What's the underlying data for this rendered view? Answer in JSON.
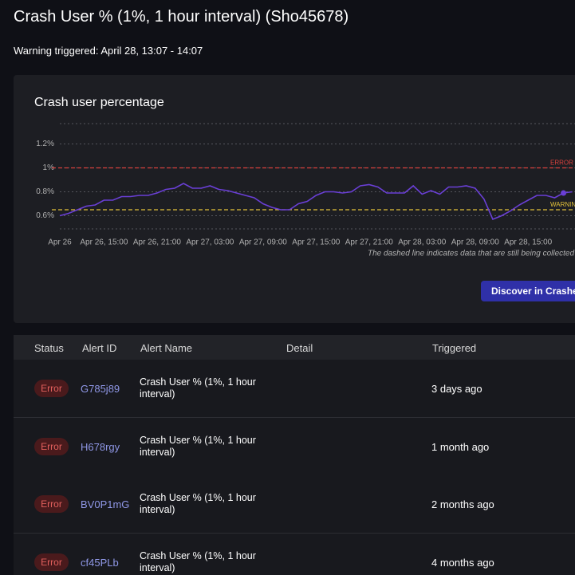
{
  "header": {
    "title": "Crash User % (1%, 1 hour interval) (Sho45678)",
    "subtitle": "Warning triggered: April 28, 13:07 - 14:07"
  },
  "chart_data": {
    "type": "line",
    "title": "Crash user percentage",
    "color": "#6a3fd6",
    "x": [
      10,
      11,
      12,
      13,
      14,
      15,
      16,
      17,
      18,
      19,
      20,
      21,
      22,
      23,
      24,
      25,
      26,
      27,
      28,
      29,
      30,
      31,
      32,
      33,
      34,
      35,
      36,
      37,
      38,
      39,
      40,
      41,
      42,
      43,
      44,
      45,
      46,
      47,
      48,
      49,
      50,
      51,
      52,
      53,
      54,
      55,
      56,
      57,
      58,
      59,
      60,
      61,
      62,
      63,
      64,
      65,
      66,
      67,
      68
    ],
    "values": [
      0.6,
      0.62,
      0.65,
      0.68,
      0.69,
      0.73,
      0.73,
      0.76,
      0.76,
      0.77,
      0.77,
      0.79,
      0.82,
      0.83,
      0.87,
      0.83,
      0.83,
      0.85,
      0.82,
      0.81,
      0.79,
      0.77,
      0.75,
      0.7,
      0.67,
      0.65,
      0.65,
      0.7,
      0.72,
      0.77,
      0.8,
      0.8,
      0.79,
      0.8,
      0.85,
      0.86,
      0.84,
      0.79,
      0.79,
      0.79,
      0.85,
      0.78,
      0.81,
      0.78,
      0.84,
      0.84,
      0.85,
      0.83,
      0.74,
      0.57,
      0.6,
      0.64,
      0.69,
      0.73,
      0.77,
      0.77,
      0.75,
      0.79,
      0.8
    ],
    "xlim": [
      10,
      69
    ],
    "xticks": [
      {
        "value": 10,
        "label": "Apr 26"
      },
      {
        "value": 15,
        "label": "Apr 26, 15:00"
      },
      {
        "value": 21,
        "label": "Apr 26, 21:00"
      },
      {
        "value": 27,
        "label": "Apr 27, 03:00"
      },
      {
        "value": 33,
        "label": "Apr 27, 09:00"
      },
      {
        "value": 39,
        "label": "Apr 27, 15:00"
      },
      {
        "value": 45,
        "label": "Apr 27, 21:00"
      },
      {
        "value": 51,
        "label": "Apr 28, 03:00"
      },
      {
        "value": 57,
        "label": "Apr 28, 09:00"
      },
      {
        "value": 63,
        "label": "Apr 28, 15:00"
      }
    ],
    "ylim": [
      0.49,
      1.37
    ],
    "yticks": [
      {
        "value": 0.6,
        "label": "0.6%"
      },
      {
        "value": 0.8,
        "label": "0.8%"
      },
      {
        "value": 1,
        "label": "1%"
      },
      {
        "value": 1.2,
        "label": "1.2%"
      }
    ],
    "grid": true,
    "thresholds": [
      {
        "label": "ERROR",
        "value": 1,
        "color": "#d9413d"
      },
      {
        "label": "WARNING",
        "value": 0.65,
        "color": "#e3c23a"
      }
    ],
    "note": "The dashed line indicates data that are still being collected"
  },
  "action": "Discover in Crashes",
  "table": {
    "columns": [
      "Status",
      "Alert ID",
      "Alert Name",
      "Detail",
      "Triggered"
    ],
    "rows": [
      {
        "status": "Error",
        "id": "G785j89",
        "name": "Crash User % (1%, 1 hour interval)",
        "triggered": "3 days ago"
      },
      {
        "status": "Error",
        "id": "H678rgy",
        "name": "Crash User % (1%, 1 hour interval)",
        "triggered": "1 month ago"
      },
      {
        "status": "Error",
        "id": "BV0P1mG",
        "name": "Crash User % (1%, 1 hour interval)",
        "triggered": "2 months ago"
      },
      {
        "status": "Error",
        "id": "cf45PLb",
        "name": "Crash User % (1%, 1 hour interval)",
        "triggered": "4 months ago"
      }
    ]
  }
}
